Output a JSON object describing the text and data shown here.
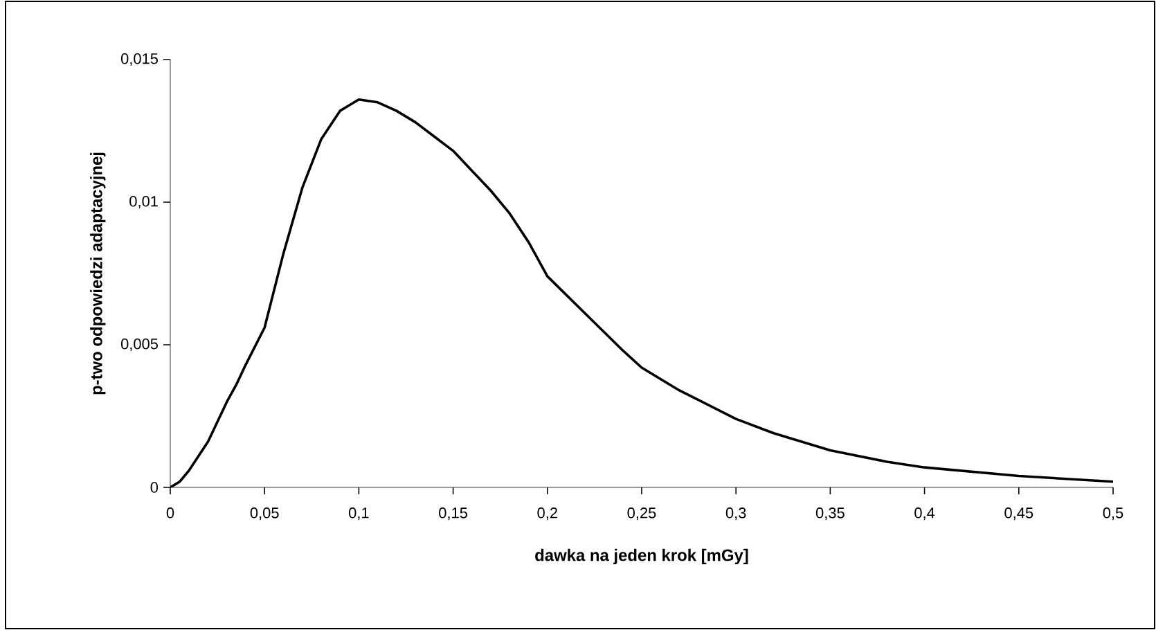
{
  "chart_data": {
    "type": "line",
    "xlabel": "dawka na jeden krok [mGy]",
    "ylabel": "p-two odpowiedzi adaptacyjnej",
    "x": [
      0,
      0.005,
      0.01,
      0.015,
      0.02,
      0.025,
      0.03,
      0.035,
      0.04,
      0.05,
      0.06,
      0.07,
      0.08,
      0.09,
      0.1,
      0.11,
      0.12,
      0.13,
      0.14,
      0.15,
      0.16,
      0.17,
      0.18,
      0.19,
      0.2,
      0.22,
      0.24,
      0.25,
      0.27,
      0.3,
      0.32,
      0.35,
      0.38,
      0.4,
      0.45,
      0.5
    ],
    "series": [
      {
        "color": "#000000",
        "values": [
          0,
          0.0002,
          0.0006,
          0.0011,
          0.0016,
          0.0023,
          0.003,
          0.0036,
          0.0043,
          0.0056,
          0.0082,
          0.0105,
          0.0122,
          0.0132,
          0.0136,
          0.0135,
          0.0132,
          0.0128,
          0.0123,
          0.0118,
          0.0111,
          0.0104,
          0.0096,
          0.0086,
          0.0074,
          0.0061,
          0.0048,
          0.0042,
          0.0034,
          0.0024,
          0.0019,
          0.0013,
          0.0009,
          0.0007,
          0.0004,
          0.0002
        ]
      }
    ],
    "xlim": [
      0,
      0.5
    ],
    "ylim": [
      0,
      0.015
    ],
    "xticks": [
      0,
      {
        "value": 0.05,
        "label": "0,05"
      },
      {
        "value": 0.1,
        "label": "0,1"
      },
      {
        "value": 0.15,
        "label": "0,15"
      },
      {
        "value": 0.2,
        "label": "0,2"
      },
      {
        "value": 0.25,
        "label": "0,25"
      },
      {
        "value": 0.3,
        "label": "0,3"
      },
      {
        "value": 0.35,
        "label": "0,35"
      },
      {
        "value": 0.4,
        "label": "0,4"
      },
      {
        "value": 0.45,
        "label": "0,45"
      },
      {
        "value": 0.5,
        "label": "0,5"
      }
    ],
    "yticks": [
      0,
      {
        "value": 0.005,
        "label": "0,005"
      },
      {
        "value": 0.01,
        "label": "0,01"
      },
      {
        "value": 0.015,
        "label": "0,015"
      }
    ],
    "grid": false,
    "marker": "none",
    "line_style": "solid"
  }
}
